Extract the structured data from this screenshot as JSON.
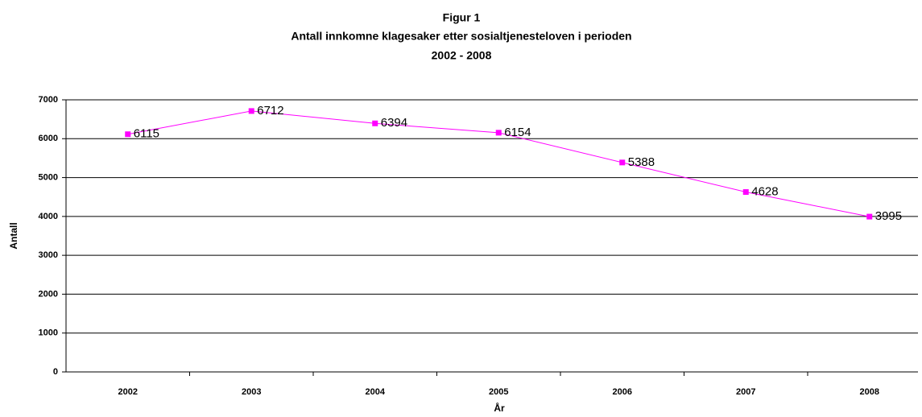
{
  "chart_data": {
    "type": "line",
    "title": [
      "Figur 1",
      "Antall innkomne klagesaker etter sosialtjenesteloven i perioden",
      "2002 - 2008"
    ],
    "x_label": "År",
    "y_label": "Antall",
    "categories": [
      "2002",
      "2003",
      "2004",
      "2005",
      "2006",
      "2007",
      "2008"
    ],
    "series": [
      {
        "name": "Antall",
        "color": "#ff00ff",
        "values": [
          6115,
          6712,
          6394,
          6154,
          5388,
          4628,
          3995
        ]
      }
    ],
    "ylim": [
      0,
      7000
    ],
    "yticks": [
      0,
      1000,
      2000,
      3000,
      4000,
      5000,
      6000,
      7000
    ],
    "grid": true
  }
}
